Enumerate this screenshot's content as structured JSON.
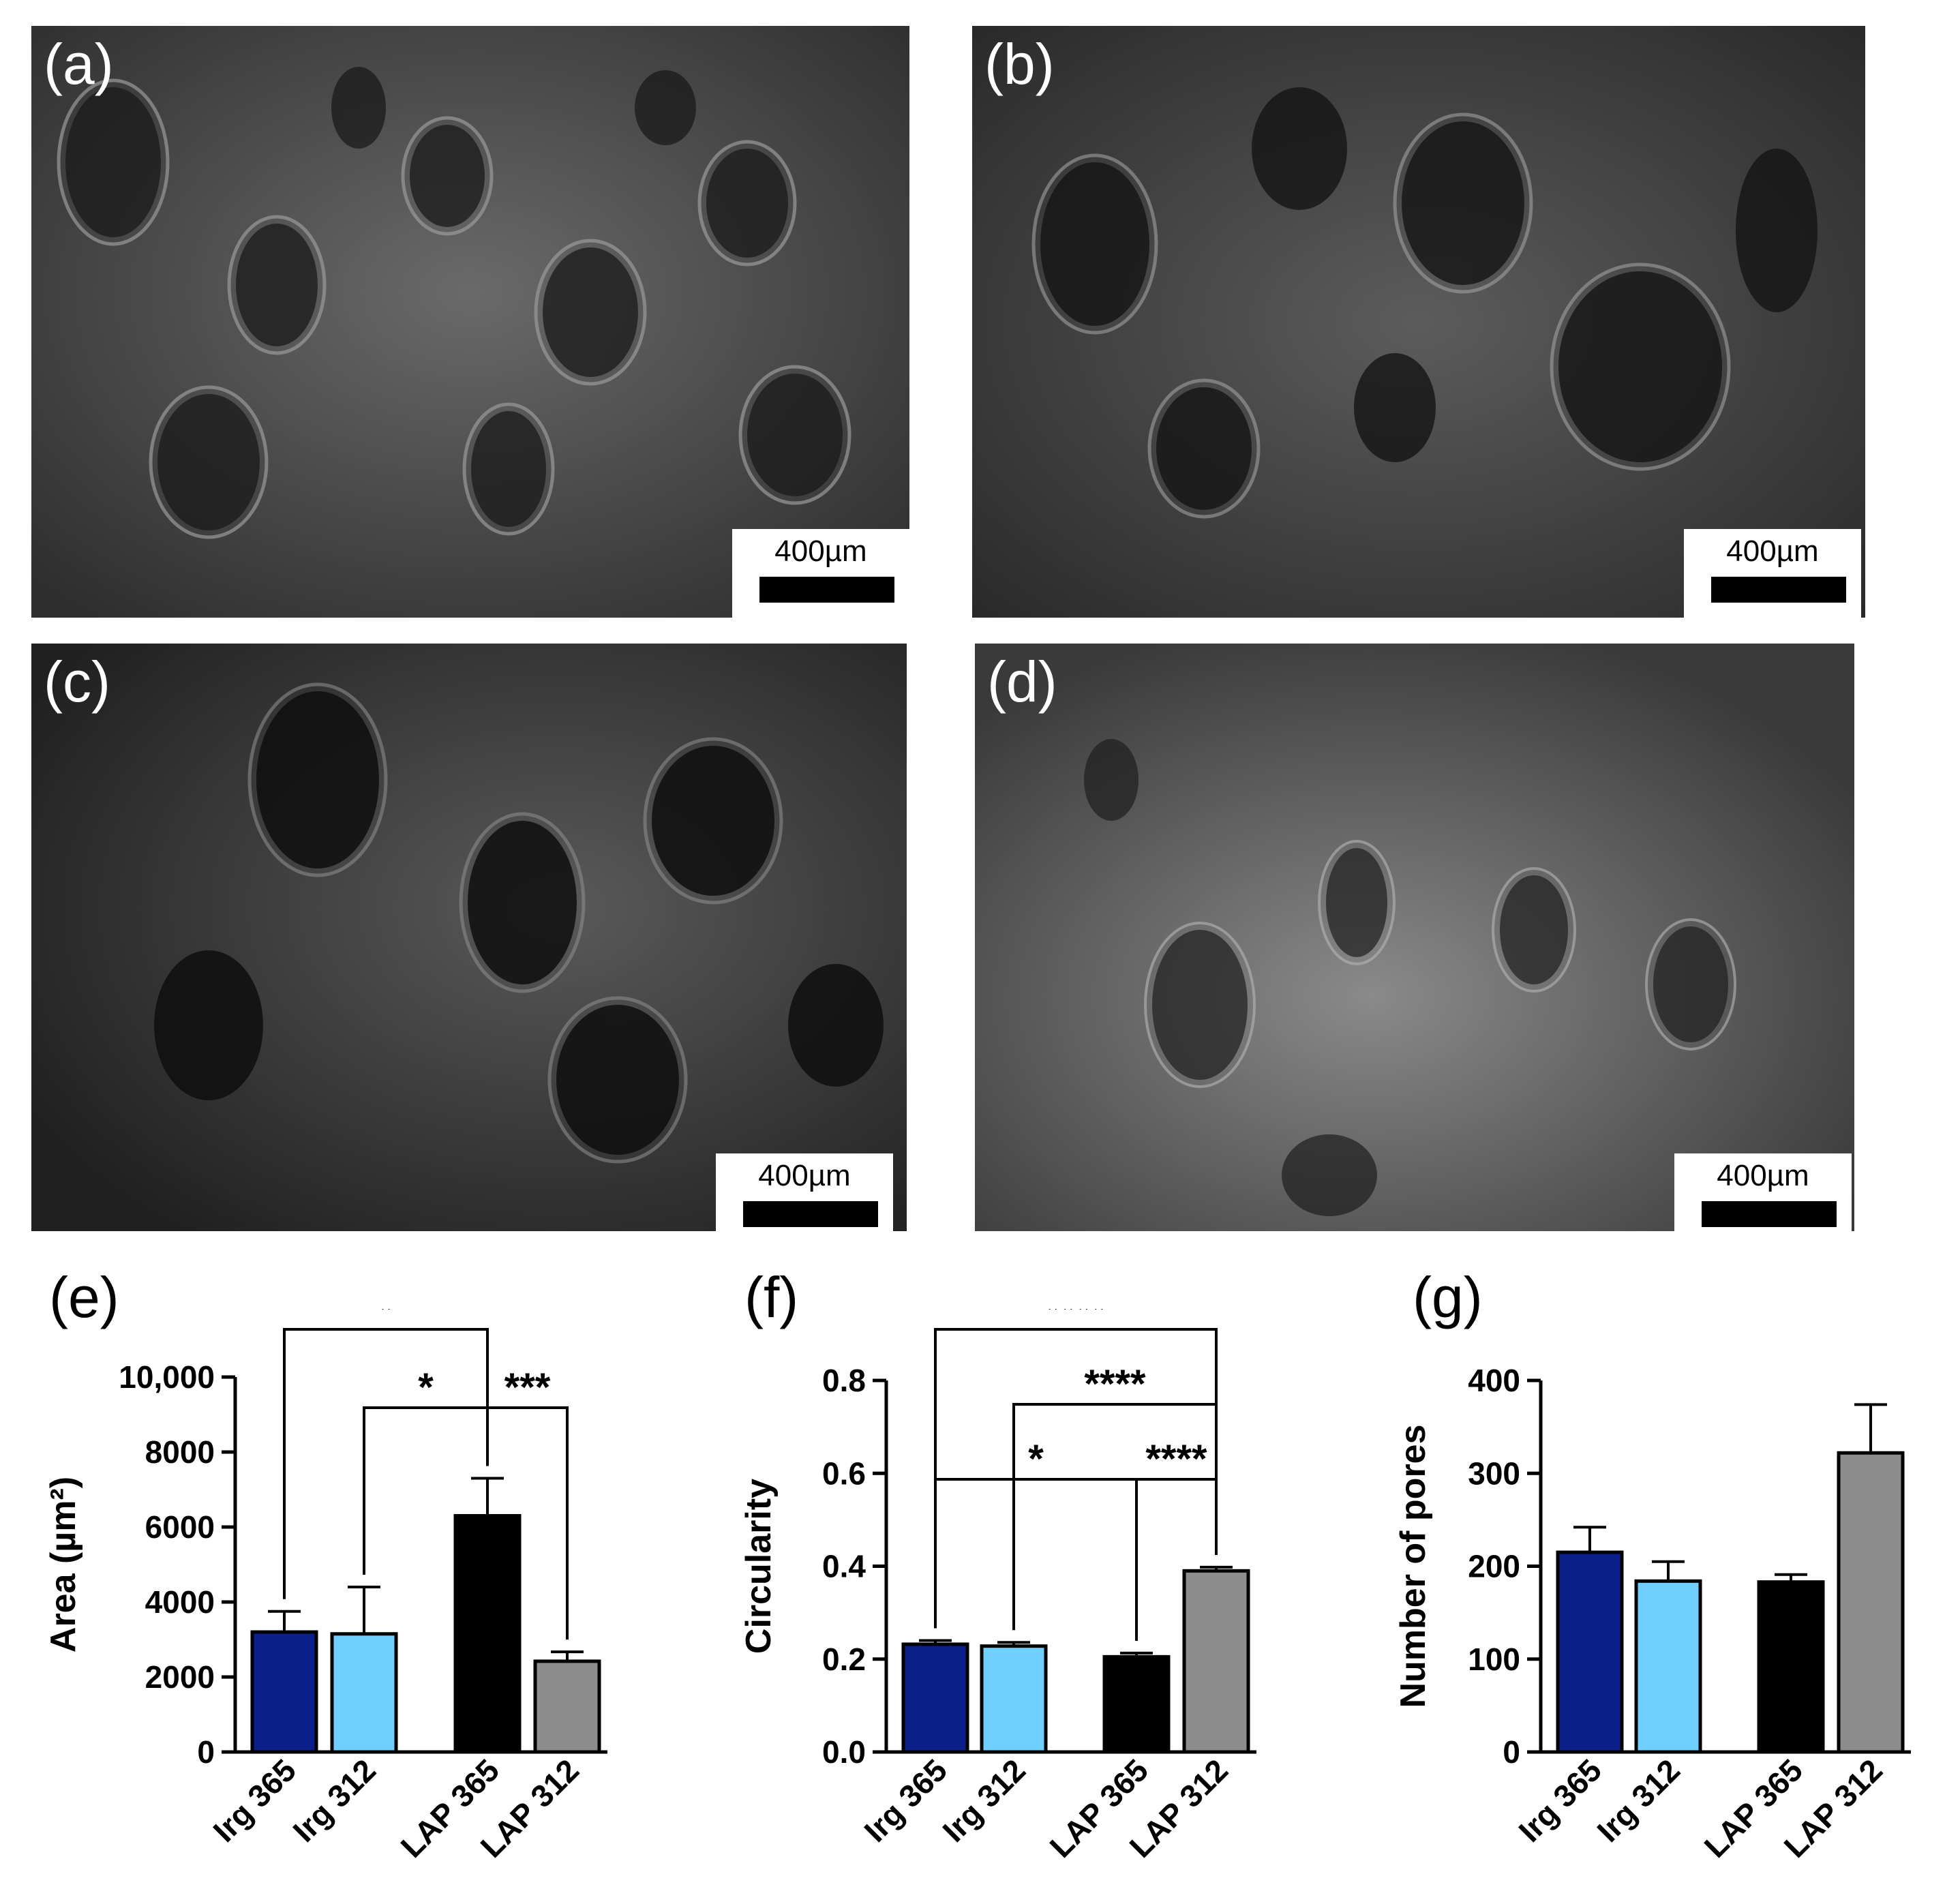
{
  "images": [
    {
      "label": "(a)",
      "scale_bar": "400µm"
    },
    {
      "label": "(b)",
      "scale_bar": "400µm"
    },
    {
      "label": "(c)",
      "scale_bar": "400µm"
    },
    {
      "label": "(d)",
      "scale_bar": "400µm"
    }
  ],
  "colors": {
    "Irg 365": "#0b1f8a",
    "Irg 312": "#6fd0ff",
    "LAP 365": "#000000",
    "LAP 312": "#8c8c8c"
  },
  "chart_data": [
    {
      "panel": "(e)",
      "type": "bar",
      "ylabel": "Area (µm²)",
      "ylim": [
        0,
        10000
      ],
      "yticks": [
        "0",
        "2000",
        "4000",
        "6000",
        "8000",
        "10,000"
      ],
      "categories": [
        "Irg 365",
        "Irg 312",
        "LAP 365",
        "LAP 312"
      ],
      "values": [
        3200,
        3150,
        6300,
        2420
      ],
      "errors": [
        550,
        1250,
        1000,
        250
      ],
      "significance": [
        {
          "from": "Irg 365",
          "to": "LAP 365",
          "label": "*"
        },
        {
          "from": "Irg 312",
          "to": "LAP 365",
          "label": "*"
        },
        {
          "from": "LAP 365",
          "to": "LAP 312",
          "label": "***"
        }
      ]
    },
    {
      "panel": "(f)",
      "type": "bar",
      "ylabel": "Circularity",
      "ylim": [
        0,
        0.8
      ],
      "yticks": [
        "0.0",
        "0.2",
        "0.4",
        "0.6",
        "0.8"
      ],
      "categories": [
        "Irg 365",
        "Irg 312",
        "LAP 365",
        "LAP 312"
      ],
      "values": [
        0.232,
        0.228,
        0.205,
        0.39
      ],
      "errors": [
        0.008,
        0.008,
        0.008,
        0.008
      ],
      "significance": [
        {
          "from": "Irg 365",
          "to": "LAP 312",
          "label": "****"
        },
        {
          "from": "Irg 312",
          "to": "LAP 312",
          "label": "****"
        },
        {
          "from": "Irg 365",
          "to": "LAP 365",
          "label": "*"
        },
        {
          "from": "LAP 365",
          "to": "LAP 312",
          "label": "****"
        }
      ]
    },
    {
      "panel": "(g)",
      "type": "bar",
      "ylabel": "Number of pores",
      "ylim": [
        0,
        400
      ],
      "yticks": [
        "0",
        "100",
        "200",
        "300",
        "400"
      ],
      "categories": [
        "Irg 365",
        "Irg 312",
        "LAP 365",
        "LAP 312"
      ],
      "values": [
        215,
        184,
        183,
        322
      ],
      "errors": [
        27,
        21,
        8,
        52
      ],
      "significance": []
    }
  ]
}
